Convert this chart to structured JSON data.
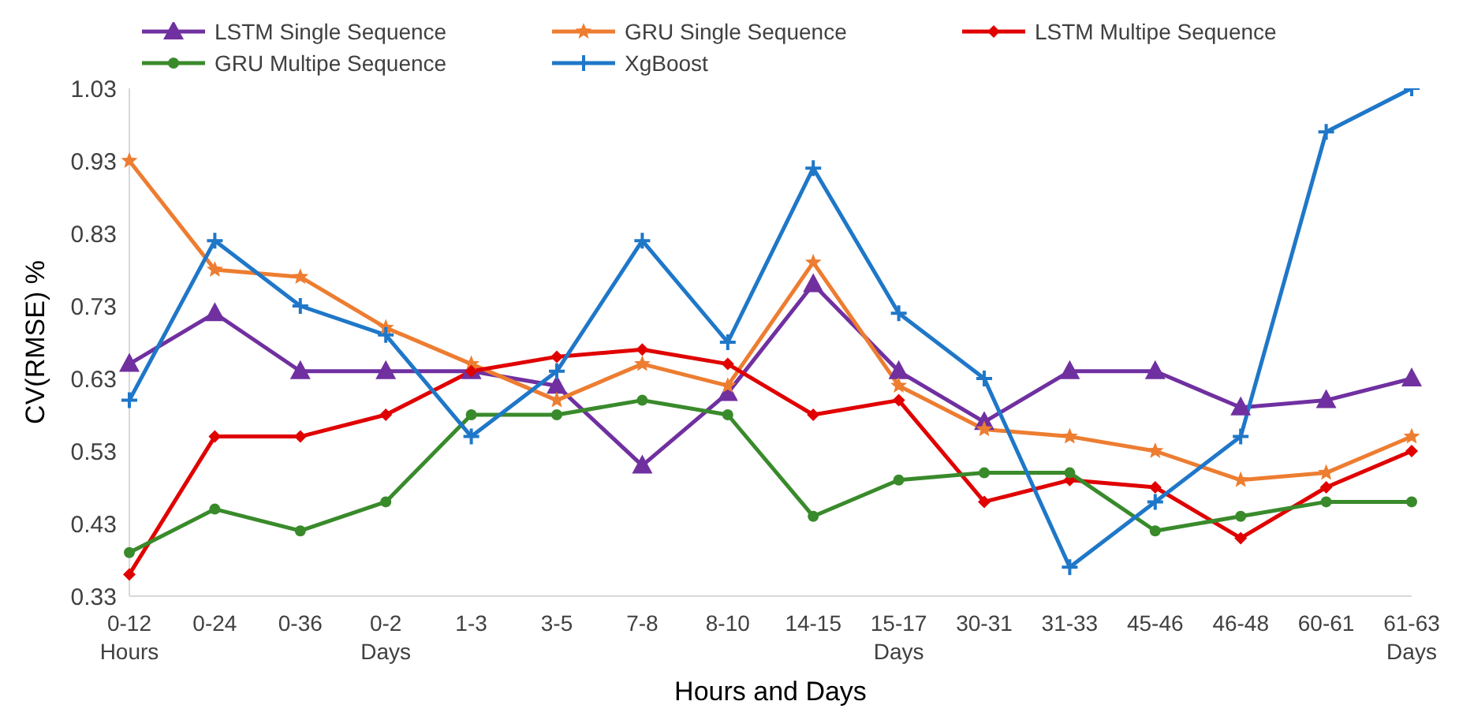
{
  "chart_data": {
    "type": "line",
    "xlabel": "Hours and Days",
    "ylabel": "CV(RMSE) %",
    "categories": [
      "0-12\nHours",
      "0-24",
      "0-36",
      "0-2\nDays",
      "1-3",
      "3-5",
      "7-8",
      "8-10",
      "14-15",
      "15-17\nDays",
      "30-31",
      "31-33",
      "45-46",
      "46-48",
      "60-61",
      "61-63\nDays"
    ],
    "series": [
      {
        "name": "LSTM Single Sequence",
        "color": "#7030a0",
        "marker": "triangle",
        "values": [
          0.65,
          0.72,
          0.64,
          0.64,
          0.64,
          0.62,
          0.51,
          0.61,
          0.76,
          0.64,
          0.57,
          0.64,
          0.64,
          0.59,
          0.6,
          0.63
        ]
      },
      {
        "name": "GRU Single Sequence",
        "color": "#ed7d31",
        "marker": "star",
        "values": [
          0.93,
          0.78,
          0.77,
          0.7,
          0.65,
          0.6,
          0.65,
          0.62,
          0.79,
          0.62,
          0.56,
          0.55,
          0.53,
          0.49,
          0.5,
          0.55
        ]
      },
      {
        "name": "LSTM Multipe Sequence",
        "color": "#e00000",
        "marker": "diamond",
        "values": [
          0.36,
          0.55,
          0.55,
          0.58,
          0.64,
          0.66,
          0.67,
          0.65,
          0.58,
          0.6,
          0.46,
          0.49,
          0.48,
          0.41,
          0.48,
          0.53
        ]
      },
      {
        "name": "GRU Multipe Sequence",
        "color": "#398a2b",
        "marker": "circle",
        "values": [
          0.39,
          0.45,
          0.42,
          0.46,
          0.58,
          0.58,
          0.6,
          0.58,
          0.44,
          0.49,
          0.5,
          0.5,
          0.42,
          0.44,
          0.46,
          0.46
        ]
      },
      {
        "name": "XgBoost",
        "color": "#1f77c8",
        "marker": "cross",
        "values": [
          0.6,
          0.82,
          0.73,
          0.69,
          0.55,
          0.64,
          0.82,
          0.68,
          0.92,
          0.72,
          0.63,
          0.37,
          0.46,
          0.55,
          0.97,
          1.03
        ]
      }
    ],
    "ylim": [
      0.33,
      1.03
    ],
    "yticks": [
      0.33,
      0.43,
      0.53,
      0.63,
      0.73,
      0.83,
      0.93,
      1.03
    ],
    "legend": "top",
    "grid": false,
    "line_style": "solid"
  }
}
